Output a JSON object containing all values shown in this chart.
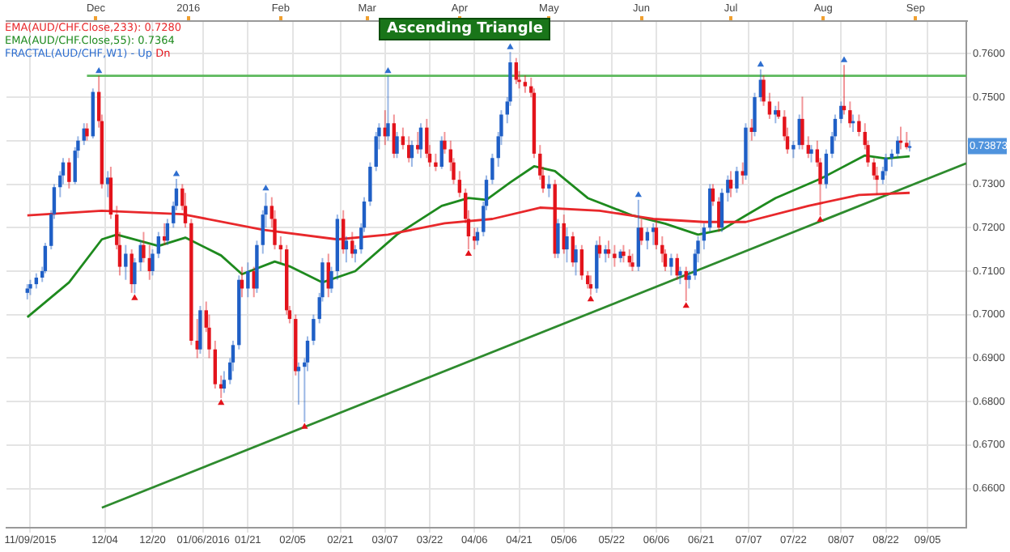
{
  "chart_data": {
    "type": "candlestick",
    "title": "Ascending Triangle",
    "legend": "top left",
    "grid": true,
    "xlim": [
      "2015-11-01",
      "2016-09-18"
    ],
    "ylim": [
      0.651,
      0.7675
    ],
    "xticks": [
      {
        "value": "2015-11-09",
        "label": "11/09/2015"
      },
      {
        "value": "2015-12-04",
        "label": "12/04"
      },
      {
        "value": "2015-12-20",
        "label": "12/20"
      },
      {
        "value": "2016-01-06",
        "label": "01/06/2016"
      },
      {
        "value": "2016-01-21",
        "label": "01/21"
      },
      {
        "value": "2016-02-05",
        "label": "02/05"
      },
      {
        "value": "2016-02-21",
        "label": "02/21"
      },
      {
        "value": "2016-03-07",
        "label": "03/07"
      },
      {
        "value": "2016-03-22",
        "label": "03/22"
      },
      {
        "value": "2016-04-06",
        "label": "04/06"
      },
      {
        "value": "2016-04-21",
        "label": "04/21"
      },
      {
        "value": "2016-05-06",
        "label": "05/06"
      },
      {
        "value": "2016-05-22",
        "label": "05/22"
      },
      {
        "value": "2016-06-06",
        "label": "06/06"
      },
      {
        "value": "2016-06-21",
        "label": "06/21"
      },
      {
        "value": "2016-07-07",
        "label": "07/07"
      },
      {
        "value": "2016-07-22",
        "label": "07/22"
      },
      {
        "value": "2016-08-07",
        "label": "08/07"
      },
      {
        "value": "2016-08-22",
        "label": "08/22"
      },
      {
        "value": "2016-09-05",
        "label": "09/05"
      }
    ],
    "x2lim": [
      "2015-11-01",
      "2016-09-18"
    ],
    "x2ticks": [
      {
        "value": "2015-12-01",
        "label": "Dec"
      },
      {
        "value": "2016-01-01",
        "label": "2016"
      },
      {
        "value": "2016-02-01",
        "label": "Feb"
      },
      {
        "value": "2016-03-01",
        "label": "Mar"
      },
      {
        "value": "2016-04-01",
        "label": "Apr"
      },
      {
        "value": "2016-05-01",
        "label": "May"
      },
      {
        "value": "2016-06-01",
        "label": "Jun"
      },
      {
        "value": "2016-07-01",
        "label": "Jul"
      },
      {
        "value": "2016-08-01",
        "label": "Aug"
      },
      {
        "value": "2016-09-01",
        "label": "Sep"
      }
    ],
    "yticks": [
      {
        "value": 0.66,
        "label": "0.6600"
      },
      {
        "value": 0.67,
        "label": "0.6700"
      },
      {
        "value": 0.68,
        "label": "0.6800"
      },
      {
        "value": 0.69,
        "label": "0.6900"
      },
      {
        "value": 0.7,
        "label": "0.7000"
      },
      {
        "value": 0.71,
        "label": "0.7100"
      },
      {
        "value": 0.72,
        "label": "0.7200"
      },
      {
        "value": 0.73,
        "label": "0.7300"
      },
      {
        "value": 0.74,
        "label": null
      },
      {
        "value": 0.75,
        "label": "0.7500"
      },
      {
        "value": 0.76,
        "label": "0.7600"
      }
    ],
    "annotations": [
      "0.73873"
    ],
    "series": [
      {
        "type": "line",
        "name": "EMA(AUD/CHF.Close,233): 0.7280",
        "color": "#e8282b",
        "x": [
          "2015-11-08",
          "2015-12-03",
          "2015-12-30",
          "2016-01-26",
          "2016-02-20",
          "2016-03-08",
          "2016-03-27",
          "2016-04-12",
          "2016-04-28",
          "2016-05-18",
          "2016-06-05",
          "2016-06-22",
          "2016-07-06",
          "2016-07-27",
          "2016-08-13",
          "2016-08-30"
        ],
        "values": [
          0.7228,
          0.7239,
          0.7231,
          0.7195,
          0.7173,
          0.7184,
          0.721,
          0.722,
          0.7246,
          0.7239,
          0.722,
          0.7213,
          0.7213,
          0.725,
          0.7275,
          0.728
        ]
      },
      {
        "type": "line",
        "name": "EMA(AUD/CHF.Close,55): 0.7364",
        "color": "#1e8a1e",
        "x": [
          "2015-11-08",
          "2015-11-22",
          "2015-12-03",
          "2015-12-08",
          "2015-12-22",
          "2015-12-31",
          "2016-01-12",
          "2016-01-19",
          "2016-01-30",
          "2016-02-04",
          "2016-02-15",
          "2016-02-26",
          "2016-03-11",
          "2016-03-26",
          "2016-04-04",
          "2016-04-10",
          "2016-04-18",
          "2016-04-26",
          "2016-05-03",
          "2016-05-14",
          "2016-05-29",
          "2016-06-09",
          "2016-06-20",
          "2016-06-28",
          "2016-07-06",
          "2016-07-16",
          "2016-07-31",
          "2016-08-15",
          "2016-08-22",
          "2016-08-30"
        ],
        "values": [
          0.6994,
          0.7074,
          0.7173,
          0.7184,
          0.7158,
          0.7177,
          0.7136,
          0.7093,
          0.7122,
          0.7111,
          0.7074,
          0.71,
          0.7184,
          0.725,
          0.7268,
          0.7264,
          0.7304,
          0.7341,
          0.733,
          0.7268,
          0.7228,
          0.7209,
          0.7184,
          0.7195,
          0.7228,
          0.7268,
          0.7312,
          0.7366,
          0.7359,
          0.7364
        ]
      },
      {
        "type": "scatter",
        "name": "FRACTAL(AUD/CHF,W1) - Up",
        "color": "#2f6fd0",
        "marker": "triangle",
        "x": [
          "2015-12-02",
          "2015-12-28",
          "2016-01-27",
          "2016-03-08",
          "2016-04-18",
          "2016-05-31",
          "2016-07-11",
          "2016-08-08"
        ],
        "values": [
          0.756,
          0.7323,
          0.729,
          0.756,
          0.7615,
          0.7275,
          0.7575,
          0.7585
        ]
      },
      {
        "type": "scatter",
        "name": "Dn",
        "color": "#e3131b",
        "marker": "triangle",
        "x": [
          "2015-12-14",
          "2016-01-12",
          "2016-02-09",
          "2016-04-04",
          "2016-05-15",
          "2016-06-16",
          "2016-07-31"
        ],
        "values": [
          0.7038,
          0.6797,
          0.6742,
          0.714,
          0.7035,
          0.702,
          0.7218
        ]
      },
      {
        "type": "line",
        "color": "#5cb85c",
        "x": [
          "2015-11-28",
          "2016-09-18"
        ],
        "values": [
          0.7549,
          0.7549
        ]
      },
      {
        "type": "line",
        "color": "#2e8b2e",
        "x": [
          "2015-12-03",
          "2016-09-18"
        ],
        "values": [
          0.6556,
          0.7348
        ]
      },
      {
        "x": [
          "2015-11-08",
          "2015-11-09",
          "2015-11-11",
          "2015-11-13",
          "2015-11-14",
          "2015-11-16",
          "2015-11-17",
          "2015-11-19",
          "2015-11-20",
          "2015-11-22",
          "2015-11-24",
          "2015-11-25",
          "2015-11-27",
          "2015-11-28",
          "2015-11-30",
          "2015-12-02",
          "2015-12-03",
          "2015-12-05",
          "2015-12-06",
          "2015-12-08",
          "2015-12-09",
          "2015-12-11",
          "2015-12-13",
          "2015-12-14",
          "2015-12-16",
          "2015-12-17",
          "2015-12-19",
          "2015-12-20",
          "2015-12-22",
          "2015-12-24",
          "2015-12-25",
          "2015-12-27",
          "2015-12-28",
          "2015-12-30",
          "2015-12-31",
          "2016-01-02",
          "2016-01-04",
          "2016-01-05",
          "2016-01-07",
          "2016-01-08",
          "2016-01-10",
          "2016-01-12",
          "2016-01-13",
          "2016-01-15",
          "2016-01-16",
          "2016-01-18",
          "2016-01-19",
          "2016-01-21",
          "2016-01-23",
          "2016-01-24",
          "2016-01-26",
          "2016-01-27",
          "2016-01-29",
          "2016-01-30",
          "2016-02-01",
          "2016-02-03",
          "2016-02-04",
          "2016-02-06",
          "2016-02-07",
          "2016-02-09",
          "2016-02-10",
          "2016-02-12",
          "2016-02-14",
          "2016-02-15",
          "2016-02-17",
          "2016-02-18",
          "2016-02-20",
          "2016-02-22",
          "2016-02-23",
          "2016-02-25",
          "2016-02-26",
          "2016-02-28",
          "2016-02-29",
          "2016-03-02",
          "2016-03-04",
          "2016-03-05",
          "2016-03-07",
          "2016-03-08",
          "2016-03-10",
          "2016-03-11",
          "2016-03-13",
          "2016-03-15",
          "2016-03-16",
          "2016-03-18",
          "2016-03-19",
          "2016-03-21",
          "2016-03-22",
          "2016-03-24",
          "2016-03-26",
          "2016-03-27",
          "2016-03-29",
          "2016-03-30",
          "2016-04-01",
          "2016-04-03",
          "2016-04-04",
          "2016-04-06",
          "2016-04-07",
          "2016-04-09",
          "2016-04-10",
          "2016-04-12",
          "2016-04-14",
          "2016-04-15",
          "2016-04-17",
          "2016-04-18",
          "2016-04-20",
          "2016-04-21",
          "2016-04-23",
          "2016-04-25",
          "2016-04-26",
          "2016-04-28",
          "2016-04-29",
          "2016-05-01",
          "2016-05-03",
          "2016-05-04",
          "2016-05-06",
          "2016-05-07",
          "2016-05-09",
          "2016-05-10",
          "2016-05-12",
          "2016-05-14",
          "2016-05-15",
          "2016-05-17",
          "2016-05-18",
          "2016-05-20",
          "2016-05-21",
          "2016-05-23",
          "2016-05-25",
          "2016-05-26",
          "2016-05-28",
          "2016-05-29",
          "2016-05-31",
          "2016-06-01",
          "2016-06-03",
          "2016-06-05",
          "2016-06-06",
          "2016-06-08",
          "2016-06-09",
          "2016-06-11",
          "2016-06-13",
          "2016-06-14",
          "2016-06-16",
          "2016-06-17",
          "2016-06-19",
          "2016-06-20",
          "2016-06-22",
          "2016-06-24",
          "2016-06-25",
          "2016-06-27",
          "2016-06-28",
          "2016-06-30",
          "2016-07-01",
          "2016-07-03",
          "2016-07-05",
          "2016-07-06",
          "2016-07-08",
          "2016-07-09",
          "2016-07-11",
          "2016-07-12",
          "2016-07-14",
          "2016-07-16",
          "2016-07-17",
          "2016-07-19",
          "2016-07-20",
          "2016-07-22",
          "2016-07-24",
          "2016-07-25",
          "2016-07-27",
          "2016-07-28",
          "2016-07-30",
          "2016-07-31",
          "2016-08-02",
          "2016-08-04",
          "2016-08-05",
          "2016-08-07",
          "2016-08-08",
          "2016-08-10",
          "2016-08-11",
          "2016-08-13",
          "2016-08-15",
          "2016-08-16",
          "2016-08-18",
          "2016-08-19",
          "2016-08-21",
          "2016-08-22",
          "2016-08-24",
          "2016-08-26",
          "2016-08-27",
          "2016-08-29",
          "2016-08-30"
        ],
        "colors": [
          "#1f5fc6",
          "#1f5fc6",
          "#1f5fc6",
          "#1f5fc6",
          "#1f5fc6",
          "#1f5fc6",
          "#1f5fc6",
          "#1f5fc6",
          "#1f5fc6",
          "#e3131b",
          "#1f5fc6",
          "#1f5fc6",
          "#1f5fc6",
          "#e3131b",
          "#1f5fc6",
          "#e3131b",
          "#e3131b",
          "#1f5fc6",
          "#e3131b",
          "#e3131b",
          "#e3131b",
          "#1f5fc6",
          "#e3131b",
          "#1f5fc6",
          "#1f5fc6",
          "#e3131b",
          "#e3131b",
          "#1f5fc6",
          "#1f5fc6",
          "#e3131b",
          "#1f5fc6",
          "#1f5fc6",
          "#1f5fc6",
          "#e3131b",
          "#e3131b",
          "#e3131b",
          "#e3131b",
          "#1f5fc6",
          "#e3131b",
          "#e3131b",
          "#e3131b",
          "#e3131b",
          "#1f5fc6",
          "#1f5fc6",
          "#1f5fc6",
          "#1f5fc6",
          "#e3131b",
          "#1f5fc6",
          "#e3131b",
          "#1f5fc6",
          "#1f5fc6",
          "#1f5fc6",
          "#e3131b",
          "#e3131b",
          "#e3131b",
          "#e3131b",
          "#e3131b",
          "#e3131b",
          "#1f5fc6",
          "#1f5fc6",
          "#1f5fc6",
          "#1f5fc6",
          "#1f5fc6",
          "#1f5fc6",
          "#e3131b",
          "#1f5fc6",
          "#1f5fc6",
          "#e3131b",
          "#1f5fc6",
          "#e3131b",
          "#1f5fc6",
          "#1f5fc6",
          "#1f5fc6",
          "#1f5fc6",
          "#1f5fc6",
          "#1f5fc6",
          "#e3131b",
          "#1f5fc6",
          "#e3131b",
          "#1f5fc6",
          "#e3131b",
          "#e3131b",
          "#1f5fc6",
          "#e3131b",
          "#1f5fc6",
          "#e3131b",
          "#e3131b",
          "#e3131b",
          "#1f5fc6",
          "#e3131b",
          "#e3131b",
          "#e3131b",
          "#e3131b",
          "#e3131b",
          "#e3131b",
          "#e3131b",
          "#1f5fc6",
          "#1f5fc6",
          "#1f5fc6",
          "#1f5fc6",
          "#1f5fc6",
          "#1f5fc6",
          "#1f5fc6",
          "#1f5fc6",
          "#e3131b",
          "#e3131b",
          "#e3131b",
          "#e3131b",
          "#e3131b",
          "#e3131b",
          "#e3131b",
          "#1f5fc6",
          "#e3131b",
          "#1f5fc6",
          "#e3131b",
          "#1f5fc6",
          "#e3131b",
          "#1f5fc6",
          "#e3131b",
          "#e3131b",
          "#e3131b",
          "#1f5fc6",
          "#e3131b",
          "#1f5fc6",
          "#e3131b",
          "#e3131b",
          "#1f5fc6",
          "#e3131b",
          "#e3131b",
          "#e3131b",
          "#1f5fc6",
          "#e3131b",
          "#1f5fc6",
          "#1f5fc6",
          "#e3131b",
          "#e3131b",
          "#e3131b",
          "#1f5fc6",
          "#e3131b",
          "#1f5fc6",
          "#e3131b",
          "#1f5fc6",
          "#1f5fc6",
          "#1f5fc6",
          "#1f5fc6",
          "#1f5fc6",
          "#e3131b",
          "#e3131b",
          "#1f5fc6",
          "#1f5fc6",
          "#e3131b",
          "#1f5fc6",
          "#e3131b",
          "#1f5fc6",
          "#e3131b",
          "#1f5fc6",
          "#1f5fc6",
          "#e3131b",
          "#e3131b",
          "#1f5fc6",
          "#e3131b",
          "#e3131b",
          "#e3131b",
          "#1f5fc6",
          "#1f5fc6",
          "#e3131b",
          "#e3131b",
          "#1f5fc6",
          "#e3131b",
          "#e3131b",
          "#1f5fc6",
          "#1f5fc6",
          "#1f5fc6",
          "#1f5fc6",
          "#e3131b",
          "#e3131b",
          "#1f5fc6",
          "#e3131b",
          "#e3131b",
          "#e3131b",
          "#e3131b",
          "#e3131b",
          "#1f5fc6",
          "#1f5fc6",
          "#1f5fc6",
          "#1f5fc6",
          "#e3131b",
          "#e3131b",
          "#1f5fc6"
        ],
        "ohlc": [
          [
            0.705,
            0.707,
            0.7035,
            0.706
          ],
          [
            0.706,
            0.708,
            0.7045,
            0.707
          ],
          [
            0.707,
            0.7095,
            0.706,
            0.7085
          ],
          [
            0.7085,
            0.711,
            0.7075,
            0.71
          ],
          [
            0.71,
            0.7165,
            0.7095,
            0.7158
          ],
          [
            0.7158,
            0.724,
            0.715,
            0.7231
          ],
          [
            0.7231,
            0.73,
            0.722,
            0.7293
          ],
          [
            0.7293,
            0.733,
            0.727,
            0.732
          ],
          [
            0.732,
            0.736,
            0.73,
            0.735
          ],
          [
            0.735,
            0.736,
            0.729,
            0.7305
          ],
          [
            0.7305,
            0.7385,
            0.73,
            0.7377
          ],
          [
            0.7377,
            0.741,
            0.736,
            0.74
          ],
          [
            0.74,
            0.744,
            0.739,
            0.7428
          ],
          [
            0.7428,
            0.744,
            0.74,
            0.741
          ],
          [
            0.741,
            0.752,
            0.7405,
            0.7512
          ],
          [
            0.7512,
            0.7549,
            0.743,
            0.7445
          ],
          [
            0.7445,
            0.746,
            0.729,
            0.73
          ],
          [
            0.73,
            0.733,
            0.727,
            0.7315
          ],
          [
            0.7315,
            0.734,
            0.722,
            0.723
          ],
          [
            0.723,
            0.725,
            0.715,
            0.716
          ],
          [
            0.716,
            0.719,
            0.709,
            0.711
          ],
          [
            0.711,
            0.716,
            0.708,
            0.714
          ],
          [
            0.714,
            0.715,
            0.705,
            0.707
          ],
          [
            0.707,
            0.713,
            0.7049,
            0.712
          ],
          [
            0.712,
            0.717,
            0.71,
            0.716
          ],
          [
            0.716,
            0.719,
            0.712,
            0.713
          ],
          [
            0.713,
            0.716,
            0.708,
            0.71
          ],
          [
            0.71,
            0.715,
            0.709,
            0.714
          ],
          [
            0.714,
            0.719,
            0.713,
            0.718
          ],
          [
            0.718,
            0.721,
            0.716,
            0.717
          ],
          [
            0.717,
            0.722,
            0.716,
            0.721
          ],
          [
            0.721,
            0.726,
            0.72,
            0.725
          ],
          [
            0.725,
            0.7312,
            0.724,
            0.729
          ],
          [
            0.729,
            0.73,
            0.724,
            0.725
          ],
          [
            0.725,
            0.728,
            0.72,
            0.721
          ],
          [
            0.721,
            0.722,
            0.693,
            0.694
          ],
          [
            0.694,
            0.699,
            0.69,
            0.692
          ],
          [
            0.692,
            0.702,
            0.691,
            0.701
          ],
          [
            0.701,
            0.703,
            0.696,
            0.697
          ],
          [
            0.697,
            0.7,
            0.69,
            0.692
          ],
          [
            0.692,
            0.694,
            0.683,
            0.684
          ],
          [
            0.684,
            0.686,
            0.6808,
            0.683
          ],
          [
            0.683,
            0.687,
            0.682,
            0.685
          ],
          [
            0.685,
            0.69,
            0.684,
            0.689
          ],
          [
            0.689,
            0.694,
            0.687,
            0.693
          ],
          [
            0.693,
            0.709,
            0.692,
            0.708
          ],
          [
            0.708,
            0.711,
            0.704,
            0.706
          ],
          [
            0.706,
            0.712,
            0.704,
            0.71
          ],
          [
            0.71,
            0.711,
            0.704,
            0.706
          ],
          [
            0.706,
            0.717,
            0.705,
            0.716
          ],
          [
            0.716,
            0.724,
            0.714,
            0.723
          ],
          [
            0.723,
            0.728,
            0.72,
            0.725
          ],
          [
            0.725,
            0.727,
            0.72,
            0.722
          ],
          [
            0.722,
            0.724,
            0.715,
            0.716
          ],
          [
            0.716,
            0.718,
            0.712,
            0.715
          ],
          [
            0.715,
            0.716,
            0.7,
            0.701
          ],
          [
            0.701,
            0.702,
            0.698,
            0.699
          ],
          [
            0.699,
            0.7,
            0.686,
            0.687
          ],
          [
            0.687,
            0.689,
            0.6793,
            0.688
          ],
          [
            0.688,
            0.69,
            0.6753,
            0.689
          ],
          [
            0.689,
            0.695,
            0.687,
            0.694
          ],
          [
            0.694,
            0.7,
            0.693,
            0.699
          ],
          [
            0.699,
            0.705,
            0.698,
            0.704
          ],
          [
            0.704,
            0.713,
            0.703,
            0.712
          ],
          [
            0.712,
            0.714,
            0.704,
            0.706
          ],
          [
            0.706,
            0.711,
            0.705,
            0.71
          ],
          [
            0.71,
            0.723,
            0.708,
            0.722
          ],
          [
            0.722,
            0.724,
            0.714,
            0.715
          ],
          [
            0.715,
            0.718,
            0.712,
            0.717
          ],
          [
            0.717,
            0.719,
            0.713,
            0.714
          ],
          [
            0.714,
            0.716,
            0.712,
            0.715
          ],
          [
            0.715,
            0.721,
            0.714,
            0.72
          ],
          [
            0.72,
            0.727,
            0.719,
            0.726
          ],
          [
            0.726,
            0.735,
            0.725,
            0.734
          ],
          [
            0.734,
            0.742,
            0.733,
            0.741
          ],
          [
            0.741,
            0.744,
            0.738,
            0.743
          ],
          [
            0.743,
            0.747,
            0.739,
            0.741
          ],
          [
            0.741,
            0.7549,
            0.74,
            0.744
          ],
          [
            0.744,
            0.746,
            0.736,
            0.737
          ],
          [
            0.737,
            0.742,
            0.736,
            0.741
          ],
          [
            0.741,
            0.743,
            0.738,
            0.739
          ],
          [
            0.739,
            0.741,
            0.735,
            0.736
          ],
          [
            0.736,
            0.74,
            0.734,
            0.739
          ],
          [
            0.739,
            0.742,
            0.737,
            0.738
          ],
          [
            0.738,
            0.744,
            0.736,
            0.743
          ],
          [
            0.743,
            0.745,
            0.736,
            0.737
          ],
          [
            0.737,
            0.739,
            0.734,
            0.735
          ],
          [
            0.735,
            0.737,
            0.733,
            0.734
          ],
          [
            0.734,
            0.741,
            0.7335,
            0.74
          ],
          [
            0.74,
            0.742,
            0.737,
            0.738
          ],
          [
            0.738,
            0.74,
            0.733,
            0.735
          ],
          [
            0.735,
            0.736,
            0.73,
            0.731
          ],
          [
            0.731,
            0.733,
            0.727,
            0.728
          ],
          [
            0.728,
            0.729,
            0.721,
            0.722
          ],
          [
            0.722,
            0.724,
            0.715,
            0.718
          ],
          [
            0.718,
            0.72,
            0.715,
            0.717
          ],
          [
            0.717,
            0.72,
            0.716,
            0.719
          ],
          [
            0.719,
            0.726,
            0.718,
            0.725
          ],
          [
            0.725,
            0.732,
            0.724,
            0.731
          ],
          [
            0.731,
            0.737,
            0.73,
            0.736
          ],
          [
            0.736,
            0.742,
            0.734,
            0.741
          ],
          [
            0.741,
            0.747,
            0.739,
            0.746
          ],
          [
            0.746,
            0.75,
            0.744,
            0.749
          ],
          [
            0.749,
            0.7604,
            0.748,
            0.758
          ],
          [
            0.758,
            0.759,
            0.753,
            0.754
          ],
          [
            0.754,
            0.756,
            0.752,
            0.7535
          ],
          [
            0.7535,
            0.755,
            0.751,
            0.7525
          ],
          [
            0.7525,
            0.7545,
            0.75,
            0.751
          ],
          [
            0.751,
            0.752,
            0.736,
            0.737
          ],
          [
            0.737,
            0.739,
            0.731,
            0.732
          ],
          [
            0.732,
            0.734,
            0.728,
            0.729
          ],
          [
            0.729,
            0.732,
            0.727,
            0.73
          ],
          [
            0.73,
            0.731,
            0.713,
            0.714
          ],
          [
            0.714,
            0.722,
            0.713,
            0.721
          ],
          [
            0.721,
            0.723,
            0.714,
            0.715
          ],
          [
            0.715,
            0.72,
            0.712,
            0.718
          ],
          [
            0.718,
            0.719,
            0.711,
            0.712
          ],
          [
            0.712,
            0.716,
            0.709,
            0.715
          ],
          [
            0.715,
            0.716,
            0.708,
            0.709
          ],
          [
            0.709,
            0.71,
            0.706,
            0.707
          ],
          [
            0.707,
            0.709,
            0.7045,
            0.706
          ],
          [
            0.706,
            0.717,
            0.705,
            0.716
          ],
          [
            0.716,
            0.718,
            0.713,
            0.714
          ],
          [
            0.714,
            0.716,
            0.712,
            0.715
          ],
          [
            0.715,
            0.717,
            0.713,
            0.714
          ],
          [
            0.714,
            0.716,
            0.711,
            0.713
          ],
          [
            0.713,
            0.715,
            0.712,
            0.7145
          ],
          [
            0.7145,
            0.716,
            0.712,
            0.7135
          ],
          [
            0.7135,
            0.715,
            0.711,
            0.712
          ],
          [
            0.712,
            0.714,
            0.71,
            0.711
          ],
          [
            0.711,
            0.7264,
            0.71,
            0.72
          ],
          [
            0.72,
            0.722,
            0.716,
            0.717
          ],
          [
            0.717,
            0.72,
            0.715,
            0.719
          ],
          [
            0.719,
            0.721,
            0.716,
            0.72
          ],
          [
            0.72,
            0.722,
            0.715,
            0.716
          ],
          [
            0.716,
            0.718,
            0.712,
            0.714
          ],
          [
            0.714,
            0.715,
            0.71,
            0.711
          ],
          [
            0.711,
            0.714,
            0.709,
            0.713
          ],
          [
            0.713,
            0.714,
            0.708,
            0.709
          ],
          [
            0.709,
            0.711,
            0.707,
            0.71
          ],
          [
            0.71,
            0.711,
            0.7031,
            0.708
          ],
          [
            0.708,
            0.71,
            0.706,
            0.709
          ],
          [
            0.709,
            0.715,
            0.708,
            0.714
          ],
          [
            0.714,
            0.718,
            0.712,
            0.717
          ],
          [
            0.717,
            0.721,
            0.715,
            0.72
          ],
          [
            0.72,
            0.73,
            0.719,
            0.729
          ],
          [
            0.729,
            0.73,
            0.725,
            0.726
          ],
          [
            0.726,
            0.727,
            0.719,
            0.72
          ],
          [
            0.72,
            0.729,
            0.719,
            0.728
          ],
          [
            0.728,
            0.732,
            0.726,
            0.731
          ],
          [
            0.731,
            0.733,
            0.727,
            0.729
          ],
          [
            0.729,
            0.734,
            0.728,
            0.733
          ],
          [
            0.733,
            0.735,
            0.73,
            0.732
          ],
          [
            0.732,
            0.744,
            0.731,
            0.743
          ],
          [
            0.743,
            0.745,
            0.74,
            0.742
          ],
          [
            0.742,
            0.751,
            0.741,
            0.75
          ],
          [
            0.75,
            0.7564,
            0.749,
            0.754
          ],
          [
            0.754,
            0.755,
            0.748,
            0.749
          ],
          [
            0.749,
            0.751,
            0.745,
            0.746
          ],
          [
            0.746,
            0.748,
            0.744,
            0.747
          ],
          [
            0.747,
            0.749,
            0.745,
            0.7455
          ],
          [
            0.7455,
            0.747,
            0.74,
            0.741
          ],
          [
            0.741,
            0.743,
            0.737,
            0.738
          ],
          [
            0.738,
            0.74,
            0.736,
            0.739
          ],
          [
            0.739,
            0.746,
            0.738,
            0.745
          ],
          [
            0.745,
            0.7501,
            0.738,
            0.739
          ],
          [
            0.739,
            0.741,
            0.736,
            0.737
          ],
          [
            0.737,
            0.739,
            0.735,
            0.738
          ],
          [
            0.738,
            0.74,
            0.734,
            0.735
          ],
          [
            0.735,
            0.736,
            0.7228,
            0.73
          ],
          [
            0.73,
            0.738,
            0.729,
            0.737
          ],
          [
            0.737,
            0.742,
            0.736,
            0.741
          ],
          [
            0.741,
            0.746,
            0.74,
            0.745
          ],
          [
            0.745,
            0.749,
            0.744,
            0.748
          ],
          [
            0.748,
            0.7574,
            0.746,
            0.747
          ],
          [
            0.747,
            0.749,
            0.743,
            0.744
          ],
          [
            0.744,
            0.746,
            0.742,
            0.7445
          ],
          [
            0.7445,
            0.746,
            0.741,
            0.742
          ],
          [
            0.742,
            0.744,
            0.738,
            0.739
          ],
          [
            0.739,
            0.74,
            0.734,
            0.735
          ],
          [
            0.735,
            0.736,
            0.731,
            0.732
          ],
          [
            0.732,
            0.734,
            0.7275,
            0.731
          ],
          [
            0.731,
            0.734,
            0.73,
            0.733
          ],
          [
            0.733,
            0.737,
            0.732,
            0.736
          ],
          [
            0.736,
            0.738,
            0.734,
            0.737
          ],
          [
            0.737,
            0.741,
            0.736,
            0.74
          ],
          [
            0.74,
            0.7432,
            0.738,
            0.7395
          ],
          [
            0.7395,
            0.742,
            0.738,
            0.7385
          ],
          [
            0.7385,
            0.74,
            0.7375,
            0.73873
          ]
        ]
      }
    ]
  }
}
